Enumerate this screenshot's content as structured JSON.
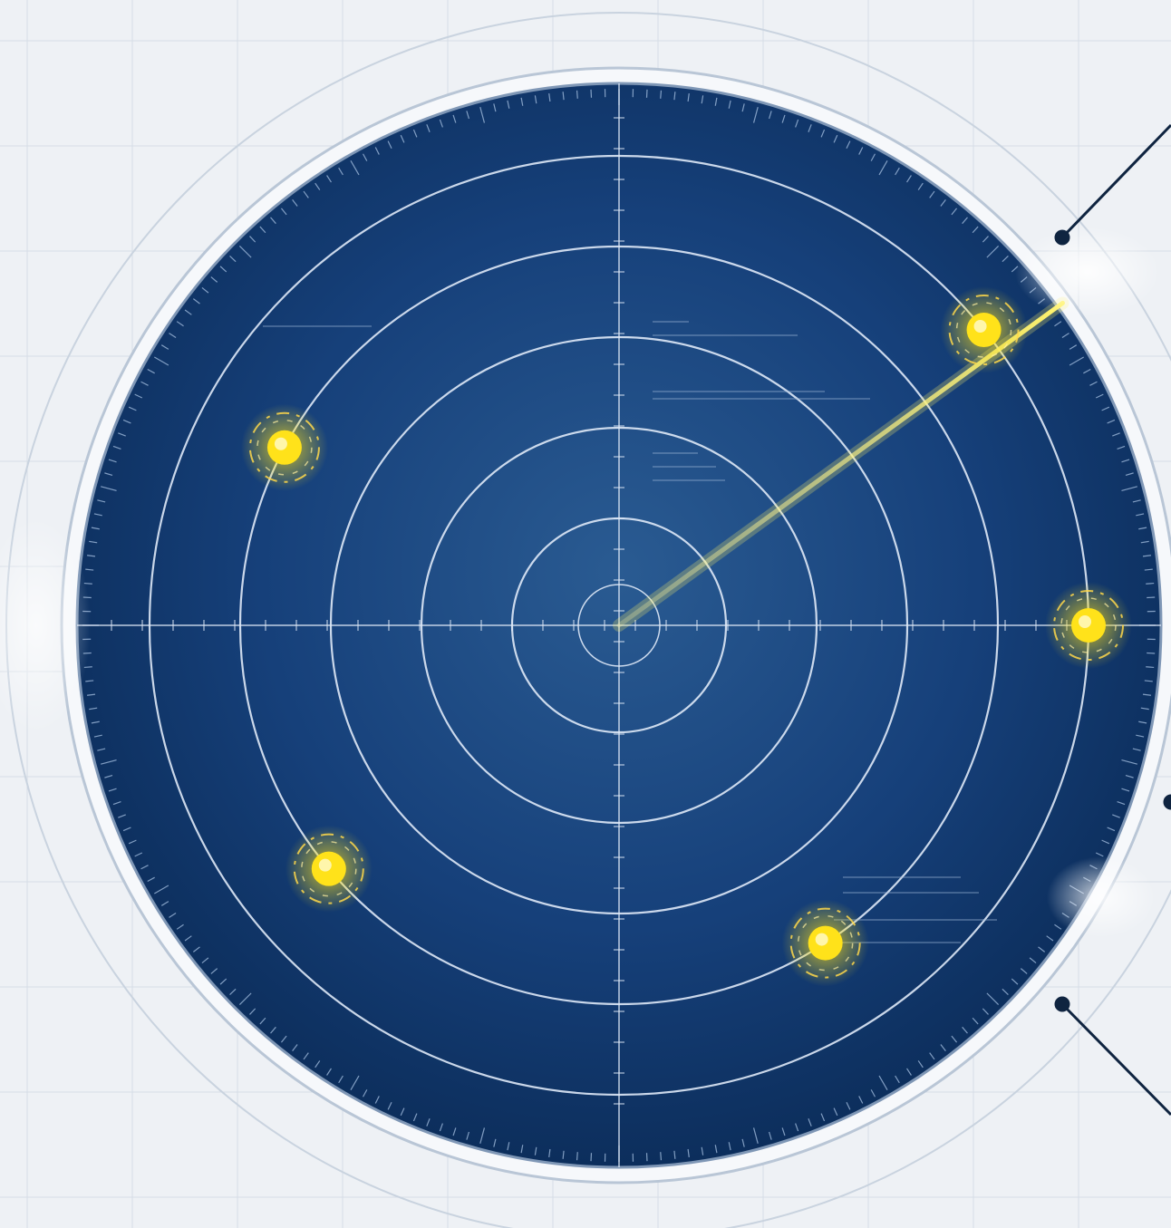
{
  "scene": {
    "subject": "radar-scope",
    "blip_count": 5
  },
  "colors": {
    "background": "#eef1f5",
    "scope_fill_center": "#1d4a7e",
    "scope_fill_edge": "#0a2a55",
    "ring": "#dfe9f7",
    "sweep": "#ffe94a",
    "blip": "#ffe21a",
    "bezel": "#c9d3df",
    "connector": "#0f2440"
  },
  "blips": [
    {
      "name": "blip-1",
      "ring_index": 4,
      "bearing_deg": 39
    },
    {
      "name": "blip-2",
      "ring_index": 3,
      "bearing_deg": 152
    },
    {
      "name": "blip-3",
      "ring_index": 4,
      "bearing_deg": 0
    },
    {
      "name": "blip-4",
      "ring_index": 3,
      "bearing_deg": 220
    },
    {
      "name": "blip-5",
      "ring_index": 3,
      "bearing_deg": 303
    }
  ],
  "sweep": {
    "bearing_deg": 36
  },
  "icons": [
    "radar-icon",
    "sweep-icon",
    "blip-icon",
    "connector-dot-icon"
  ]
}
